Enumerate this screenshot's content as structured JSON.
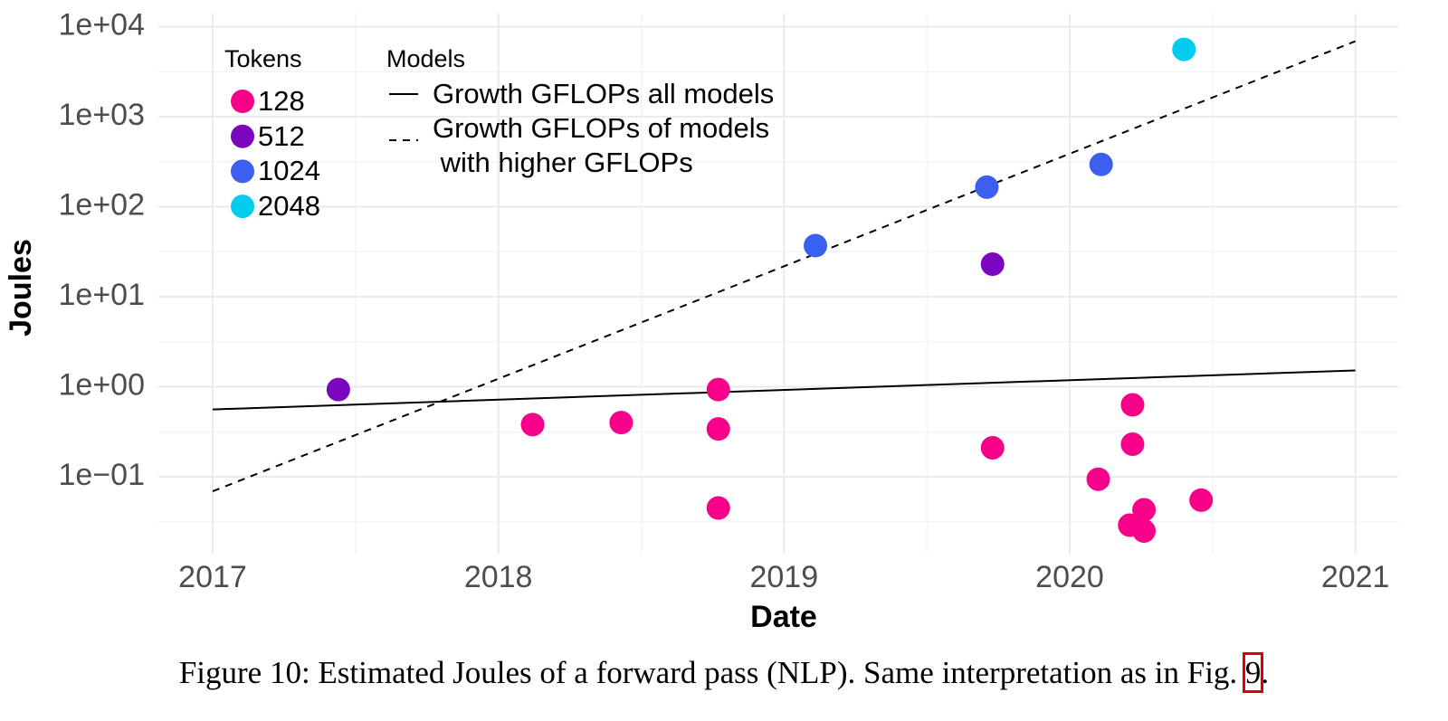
{
  "chart_data": {
    "type": "scatter",
    "x_label": "Date",
    "y_label": "Joules",
    "xlim": [
      2016.81,
      2021.15
    ],
    "xticks": [
      2017,
      2018,
      2019,
      2020,
      2021
    ],
    "ylim": [
      0.014,
      14000
    ],
    "ylog": true,
    "yticks": [
      {
        "value": 0.1,
        "label": "1e−01"
      },
      {
        "value": 1,
        "label": "1e+00"
      },
      {
        "value": 10,
        "label": "1e+01"
      },
      {
        "value": 100,
        "label": "1e+02"
      },
      {
        "value": 1000,
        "label": "1e+03"
      },
      {
        "value": 10000,
        "label": "1e+04"
      }
    ],
    "grid": true,
    "series_legend_title": "Tokens",
    "series": [
      {
        "name": "128",
        "color": "#f7008a",
        "x": [
          2018.12,
          2018.43,
          2018.77,
          2018.77,
          2018.77,
          2019.73,
          2020.1,
          2020.22,
          2020.22,
          2020.21,
          2020.26,
          2020.26,
          2020.46
        ],
        "values": [
          0.38,
          0.4,
          0.93,
          0.34,
          0.045,
          0.21,
          0.094,
          0.63,
          0.23,
          0.029,
          0.043,
          0.025,
          0.055
        ]
      },
      {
        "name": "512",
        "color": "#7a06c0",
        "x": [
          2017.44,
          2019.73
        ],
        "values": [
          0.93,
          23
        ]
      },
      {
        "name": "1024",
        "color": "#3d5ff0",
        "x": [
          2019.11,
          2019.71,
          2020.11
        ],
        "values": [
          37,
          165,
          295
        ]
      },
      {
        "name": "2048",
        "color": "#05cbef",
        "x": [
          2020.4
        ],
        "values": [
          5600
        ]
      }
    ],
    "trend_lines": {
      "legend_title": "Models",
      "series": [
        {
          "name": "Growth GFLOPs all models",
          "color": "#000000",
          "dash": "solid",
          "x": [
            2017,
            2021
          ],
          "values": [
            0.56,
            1.52
          ]
        },
        {
          "name": "Growth GFLOPs of models\n with higher GFLOPs",
          "color": "#000000",
          "dash": "dashed",
          "x": [
            2017,
            2021
          ],
          "values": [
            0.069,
            6900
          ]
        }
      ]
    }
  },
  "caption": {
    "text": "Figure 10: Estimated Joules of a forward pass (NLP). Same interpretation as in Fig. ",
    "ref": "9",
    "end": "."
  }
}
